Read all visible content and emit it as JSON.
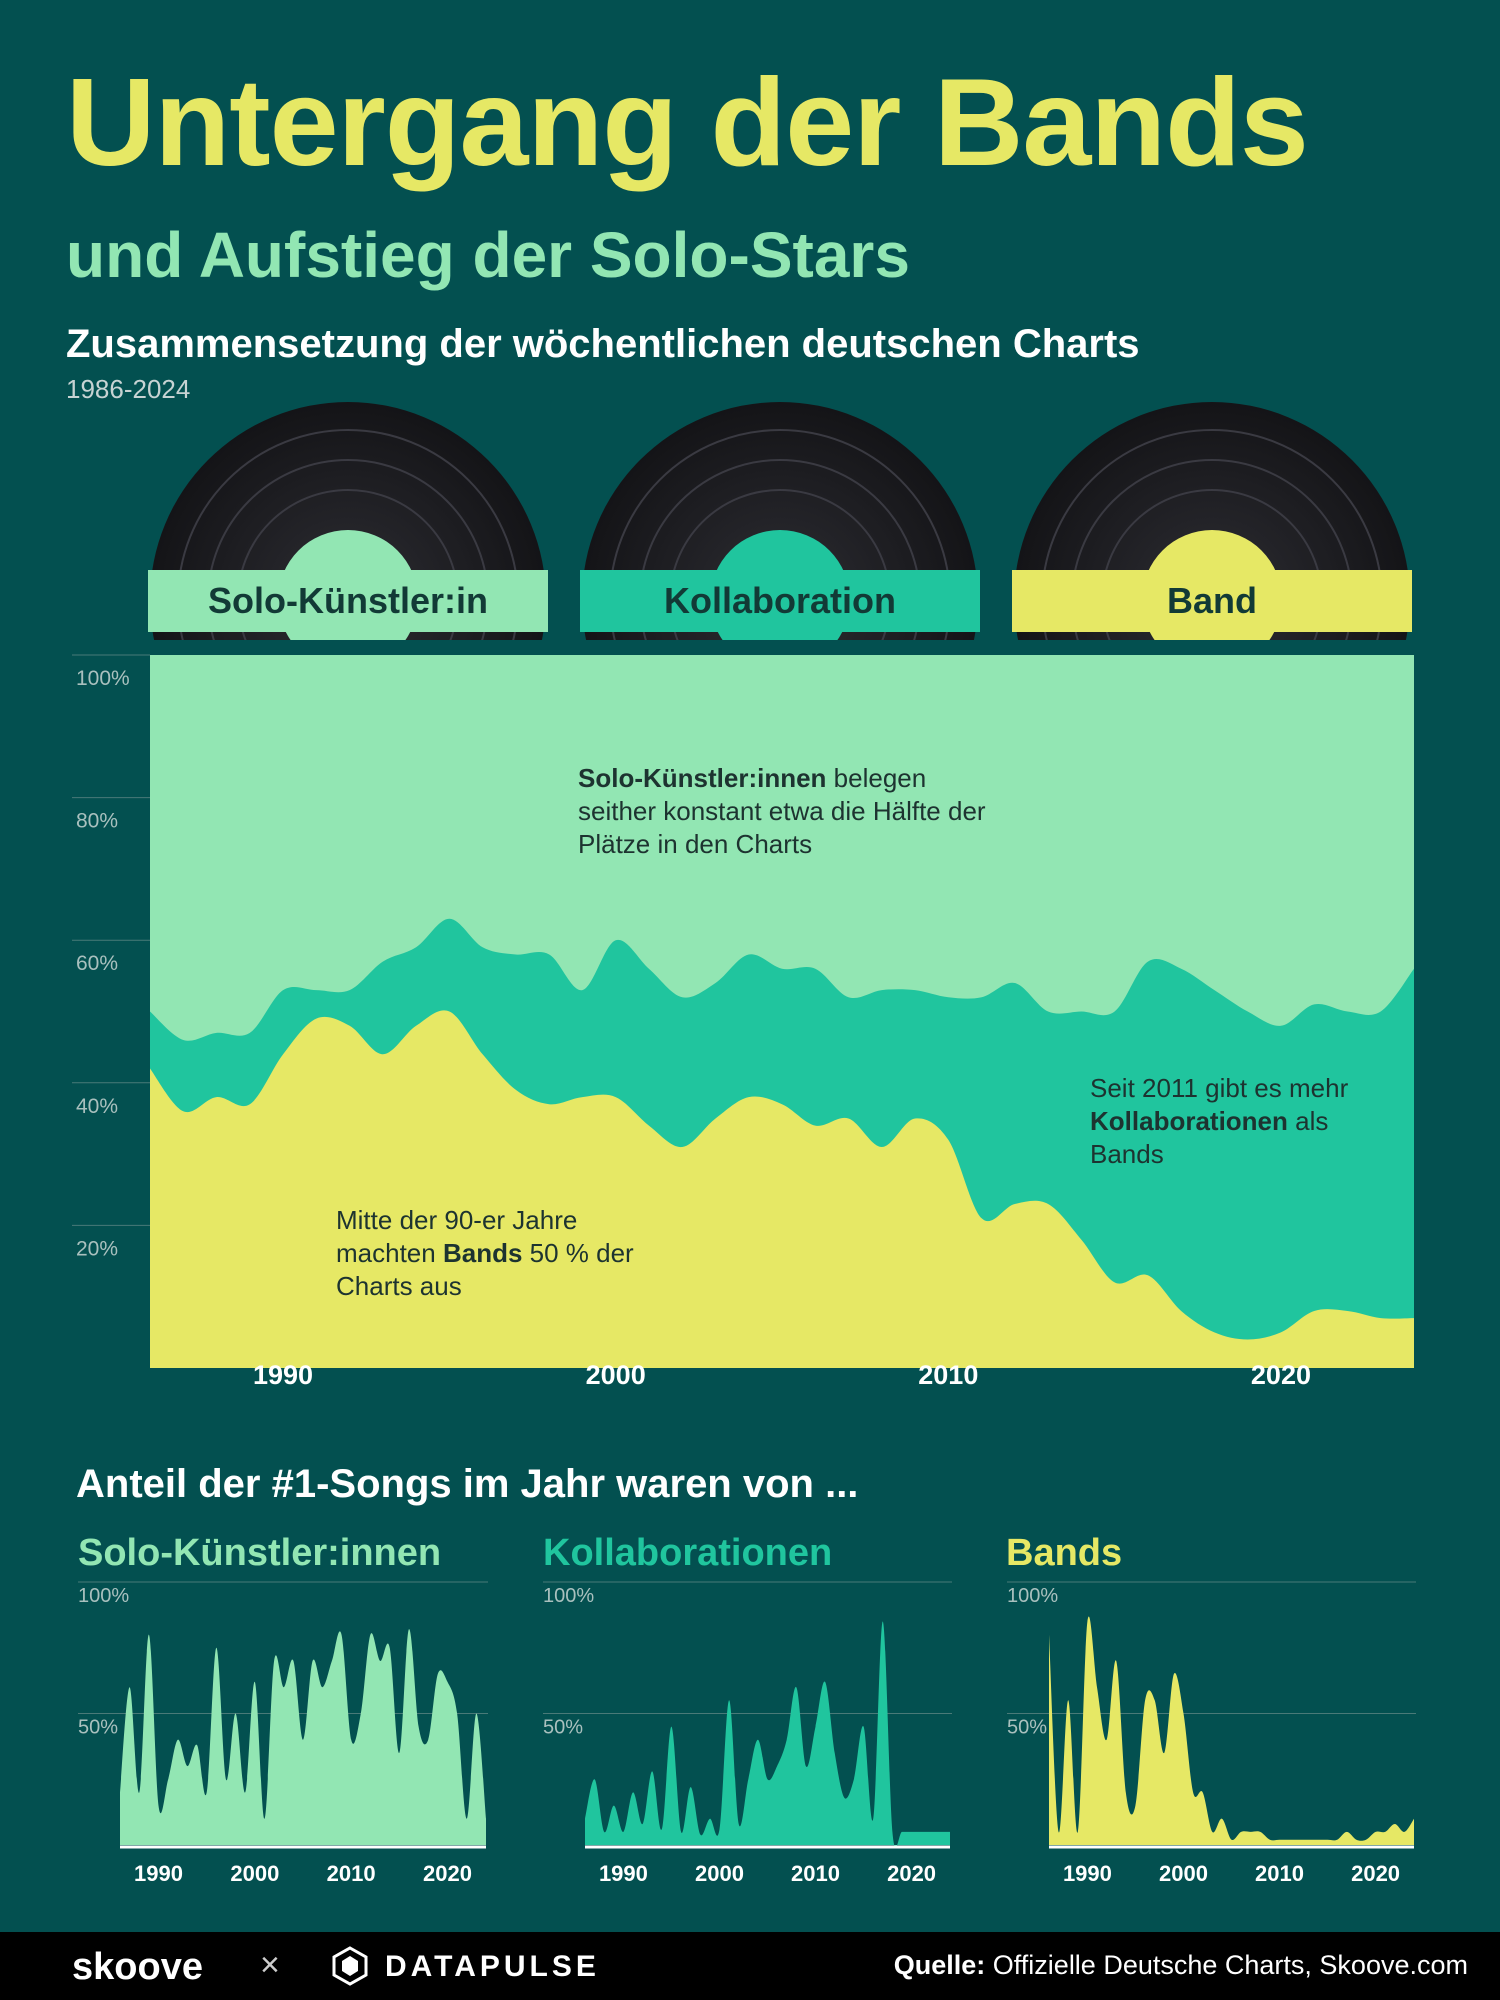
{
  "title": "Untergang der Bands",
  "subtitle": "und Aufstieg der Solo-Stars",
  "chart_title": "Zusammensetzung der wöchentlichen deutschen Charts",
  "chart_years": "1986-2024",
  "categories": {
    "solo": "Solo-Künstler:in",
    "collab": "Kollaboration",
    "band": "Band"
  },
  "colors": {
    "background": "#035050",
    "solo": "#92e6b3",
    "collab": "#20c59e",
    "band": "#e6e865",
    "title": "#e6e865"
  },
  "annotations": {
    "solo_bold": "Solo-Künstler:innen",
    "solo_rest": " belegen seither konstant etwa die Hälfte der Plätze in den Charts",
    "collab_a": "Seit 2011 gibt es mehr ",
    "collab_bold": "Kollaborationen",
    "collab_b": " als Bands",
    "band_a": "Mitte der 90-er Jahre machten ",
    "band_bold": "Bands",
    "band_b": " 50 % der Charts aus"
  },
  "bottom_title": "Anteil der #1-Songs im Jahr waren von ...",
  "small_titles": {
    "solo": "Solo-Künstler:innen",
    "collab": "Kollaborationen",
    "band": "Bands"
  },
  "footer": {
    "logo1": "skoove",
    "times": "×",
    "logo2": "DATAPULSE",
    "source_label": "Quelle:",
    "source_text": " Offizielle Deutsche Charts, Skoove.com"
  },
  "chart_data": [
    {
      "type": "area",
      "stacked": true,
      "x_ticks": [
        1990,
        2000,
        2010,
        2020
      ],
      "y_ticks": [
        "20%",
        "40%",
        "60%",
        "80%",
        "100%"
      ],
      "ylim": [
        0,
        100
      ],
      "x": [
        1986,
        1987,
        1988,
        1989,
        1990,
        1991,
        1992,
        1993,
        1994,
        1995,
        1996,
        1997,
        1998,
        1999,
        2000,
        2001,
        2002,
        2003,
        2004,
        2005,
        2006,
        2007,
        2008,
        2009,
        2010,
        2011,
        2012,
        2013,
        2014,
        2015,
        2016,
        2017,
        2018,
        2019,
        2020,
        2021,
        2022,
        2023,
        2024
      ],
      "series": [
        {
          "name": "Band",
          "values": [
            42,
            36,
            38,
            37,
            44,
            49,
            48,
            44,
            48,
            50,
            44,
            39,
            37,
            38,
            38,
            34,
            31,
            35,
            38,
            37,
            34,
            35,
            31,
            35,
            32,
            21,
            23,
            23,
            18,
            12,
            13,
            8,
            5,
            4,
            5,
            8,
            8,
            7,
            7
          ]
        },
        {
          "name": "Kollaboration",
          "values": [
            8,
            10,
            9,
            10,
            9,
            4,
            5,
            13,
            11,
            13,
            15,
            19,
            21,
            15,
            22,
            22,
            21,
            19,
            20,
            19,
            22,
            17,
            22,
            18,
            20,
            31,
            31,
            27,
            32,
            38,
            44,
            48,
            48,
            46,
            43,
            43,
            42,
            43,
            49
          ]
        },
        {
          "name": "Solo-Künstler:in",
          "values": [
            50,
            54,
            53,
            53,
            47,
            47,
            47,
            43,
            41,
            37,
            41,
            42,
            42,
            47,
            40,
            44,
            48,
            46,
            42,
            44,
            44,
            48,
            47,
            47,
            48,
            48,
            46,
            50,
            50,
            50,
            43,
            44,
            47,
            50,
            52,
            49,
            50,
            50,
            44
          ]
        }
      ]
    },
    {
      "type": "area",
      "title": "Solo-Künstler:innen",
      "x_ticks": [
        1990,
        2000,
        2010,
        2020
      ],
      "y_ticks": [
        "50%",
        "100%"
      ],
      "ylim": [
        0,
        100
      ],
      "x": [
        1986,
        1987,
        1988,
        1989,
        1990,
        1991,
        1992,
        1993,
        1994,
        1995,
        1996,
        1997,
        1998,
        1999,
        2000,
        2001,
        2002,
        2003,
        2004,
        2005,
        2006,
        2007,
        2008,
        2009,
        2010,
        2011,
        2012,
        2013,
        2014,
        2015,
        2016,
        2017,
        2018,
        2019,
        2020,
        2021,
        2022,
        2023,
        2024
      ],
      "values": [
        20,
        60,
        20,
        80,
        15,
        25,
        40,
        30,
        38,
        20,
        75,
        25,
        50,
        20,
        62,
        10,
        70,
        60,
        70,
        40,
        70,
        60,
        70,
        80,
        40,
        50,
        80,
        70,
        75,
        35,
        82,
        45,
        40,
        65,
        62,
        50,
        10,
        50,
        10
      ]
    },
    {
      "type": "area",
      "title": "Kollaborationen",
      "x_ticks": [
        1990,
        2000,
        2010,
        2020
      ],
      "y_ticks": [
        "50%",
        "100%"
      ],
      "ylim": [
        0,
        100
      ],
      "x": [
        1986,
        1987,
        1988,
        1989,
        1990,
        1991,
        1992,
        1993,
        1994,
        1995,
        1996,
        1997,
        1998,
        1999,
        2000,
        2001,
        2002,
        2003,
        2004,
        2005,
        2006,
        2007,
        2008,
        2009,
        2010,
        2011,
        2012,
        2013,
        2014,
        2015,
        2016,
        2017,
        2018,
        2019,
        2020,
        2021,
        2022,
        2023,
        2024
      ],
      "values": [
        10,
        25,
        5,
        15,
        5,
        20,
        8,
        28,
        6,
        45,
        5,
        22,
        4,
        10,
        6,
        55,
        8,
        25,
        40,
        25,
        30,
        40,
        60,
        30,
        45,
        62,
        35,
        18,
        25,
        45,
        10,
        85,
        5,
        5,
        5,
        5,
        5,
        5,
        5
      ]
    },
    {
      "type": "area",
      "title": "Bands",
      "x_ticks": [
        1990,
        2000,
        2010,
        2020
      ],
      "y_ticks": [
        "50%",
        "100%"
      ],
      "ylim": [
        0,
        100
      ],
      "x": [
        1986,
        1987,
        1988,
        1989,
        1990,
        1991,
        1992,
        1993,
        1994,
        1995,
        1996,
        1997,
        1998,
        1999,
        2000,
        2001,
        2002,
        2003,
        2004,
        2005,
        2006,
        2007,
        2008,
        2009,
        2010,
        2011,
        2012,
        2013,
        2014,
        2015,
        2016,
        2017,
        2018,
        2019,
        2020,
        2021,
        2022,
        2023,
        2024
      ],
      "values": [
        80,
        5,
        55,
        5,
        85,
        60,
        40,
        70,
        20,
        15,
        55,
        55,
        35,
        65,
        50,
        20,
        20,
        5,
        10,
        2,
        5,
        5,
        5,
        2,
        2,
        2,
        2,
        2,
        2,
        2,
        2,
        5,
        2,
        2,
        5,
        5,
        8,
        5,
        10
      ]
    }
  ]
}
